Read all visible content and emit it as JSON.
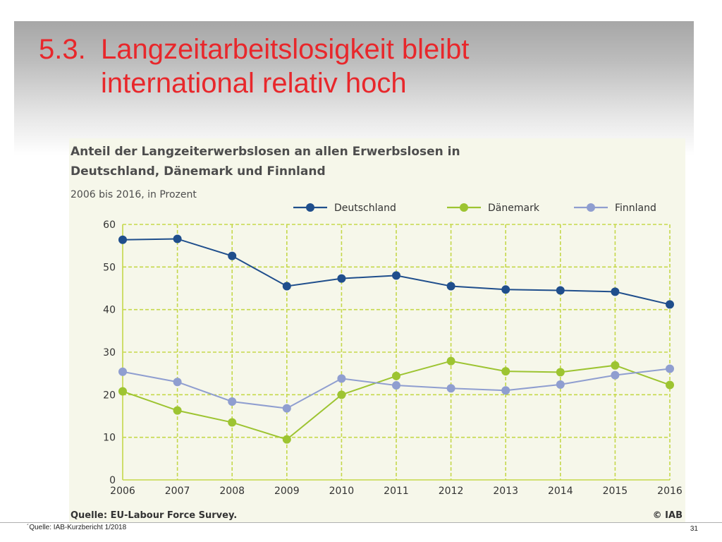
{
  "slide": {
    "title_number": "5.3.",
    "title_line1": "Langzeitarbeitslosigkeit bleibt",
    "title_line2": "international relativ hoch",
    "footnote": "´Quelle: IAB-Kurzbericht 1/2018",
    "page_number": "31"
  },
  "colors": {
    "title": "#e8272b",
    "grid": "#c5d84a",
    "chart_bg": "#f6f7ea"
  },
  "chart_data": {
    "type": "line",
    "title_line1": "Anteil der Langzeiterwerbslosen an allen Erwerbslosen in",
    "title_line2": "Deutschland, Dänemark und Finnland",
    "subtitle": "2006 bis 2016, in Prozent",
    "x": [
      "2006",
      "2007",
      "2008",
      "2009",
      "2010",
      "2011",
      "2012",
      "2013",
      "2014",
      "2015",
      "2016"
    ],
    "y_ticks": [
      "0",
      "10",
      "20",
      "30",
      "40",
      "50",
      "60"
    ],
    "ylim": [
      0,
      60
    ],
    "grid": true,
    "legend_position": "top-right",
    "series": [
      {
        "name": "Deutschland",
        "color": "#1f4e8c",
        "values": [
          56.4,
          56.6,
          52.6,
          45.5,
          47.3,
          48.0,
          45.5,
          44.7,
          44.5,
          44.2,
          41.2
        ]
      },
      {
        "name": "Dänemark",
        "color": "#9dc431",
        "values": [
          20.8,
          16.3,
          13.5,
          9.5,
          20.0,
          24.4,
          27.9,
          25.5,
          25.3,
          26.9,
          22.3
        ]
      },
      {
        "name": "Finnland",
        "color": "#8f9ed0",
        "values": [
          25.4,
          23.0,
          18.4,
          16.8,
          23.8,
          22.2,
          21.5,
          21.0,
          22.4,
          24.6,
          26.1
        ]
      }
    ],
    "source": "Quelle: EU-Labour Force Survey.",
    "credit": "© IAB"
  }
}
